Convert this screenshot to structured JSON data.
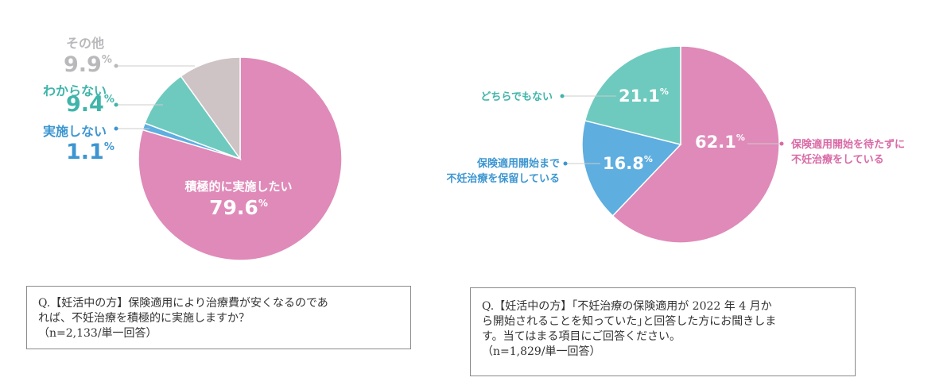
{
  "colors": {
    "pink": "#df8ab9",
    "teal": "#6ecabf",
    "blue": "#5eaee0",
    "gray": "#cec3c5",
    "pink_text": "#d96aa6",
    "teal_text": "#3fb5aa",
    "blue_text": "#3d96d1",
    "gray_text": "#b9b9bc"
  },
  "chart_data": [
    {
      "type": "pie",
      "slices": [
        {
          "label": "積極的に実施したい",
          "value": 79.6,
          "value_text": "79.6",
          "color": "pink"
        },
        {
          "label": "実施しない",
          "value": 1.1,
          "value_text": "1.1",
          "color": "blue"
        },
        {
          "label": "わからない",
          "value": 9.4,
          "value_text": "9.4",
          "color": "teal"
        },
        {
          "label": "その他",
          "value": 9.9,
          "value_text": "9.9",
          "color": "gray"
        }
      ],
      "unit": "%",
      "question": {
        "lines": [
          "Q.【妊活中の方】保険適用により治療費が安くなるのであ",
          "れば、不妊治療を積極的に実施しますか？",
          "（n=2,133/単一回答）"
        ]
      }
    },
    {
      "type": "pie",
      "slices": [
        {
          "label": "保険適用開始を待たずに不妊治療をしている",
          "label_lines": [
            "保険適用開始を待たずに",
            "不妊治療をしている"
          ],
          "value": 62.1,
          "value_text": "62.1",
          "color": "pink"
        },
        {
          "label": "保険適用開始まで不妊治療を保留している",
          "label_lines": [
            "保険適用開始まで",
            "不妊治療を保留している"
          ],
          "value": 16.8,
          "value_text": "16.8",
          "color": "blue"
        },
        {
          "label": "どちらでもない",
          "label_lines": [
            "どちらでもない"
          ],
          "value": 21.1,
          "value_text": "21.1",
          "color": "teal"
        }
      ],
      "unit": "%",
      "question": {
        "lines": [
          "Q.【妊活中の方】｢不妊治療の保険適用が 2022 年 4 月か",
          "ら開始されることを知っていた｣と回答した方にお聞きしま",
          "す。当てはまる項目にご回答ください。",
          "（n=1,829/単一回答）"
        ]
      }
    }
  ]
}
